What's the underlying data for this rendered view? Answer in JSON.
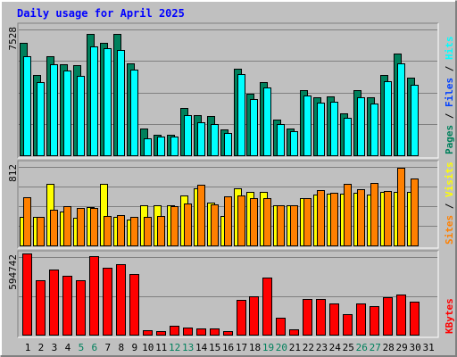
{
  "title": "Daily usage for April 2025",
  "colors": {
    "background": "#c0c0c0",
    "border_light": "#ffffff",
    "border_dark": "#808080",
    "title": "#0000ff",
    "pages": "#00805c",
    "files": "#0040ff",
    "hits": "#00ffff",
    "visits": "#ffff00",
    "sites": "#ff8000",
    "kbytes": "#ff0000",
    "weekend_label": "#00805c",
    "label": "#000000",
    "separator": "#000000"
  },
  "chart_data": [
    {
      "type": "bar",
      "panel": "top",
      "max_label": "7528",
      "ylim": [
        0,
        7528
      ],
      "legend": [
        {
          "text": "Pages",
          "color": "#00805c"
        },
        {
          "text": "Files",
          "color": "#0040ff"
        },
        {
          "text": "Hits",
          "color": "#00ffff"
        }
      ],
      "separator": " / ",
      "categories": [
        "1",
        "2",
        "3",
        "4",
        "5",
        "6",
        "7",
        "8",
        "9",
        "10",
        "11",
        "12",
        "13",
        "14",
        "15",
        "16",
        "17",
        "18",
        "19",
        "20",
        "21",
        "22",
        "23",
        "24",
        "25",
        "26",
        "27",
        "28",
        "29",
        "30",
        "31"
      ],
      "series": [
        {
          "name": "Pages",
          "color": "#00805c",
          "values": [
            6900,
            4950,
            6100,
            5600,
            5550,
            7500,
            6950,
            7500,
            5650,
            1650,
            1250,
            1250,
            2900,
            2500,
            2400,
            1600,
            5350,
            3800,
            4500,
            2200,
            1650,
            4000,
            3550,
            3600,
            2600,
            4000,
            3550,
            4950,
            6250,
            4800,
            null
          ]
        },
        {
          "name": "Files",
          "color": "#0040ff",
          "values": [
            6100,
            4500,
            5600,
            5200,
            4900,
            6700,
            6600,
            6500,
            5250,
            1050,
            1150,
            1150,
            2450,
            2050,
            1950,
            1400,
            5000,
            3450,
            4200,
            1950,
            1500,
            3700,
            3250,
            3300,
            2300,
            3550,
            3200,
            4550,
            5650,
            4350,
            null
          ]
        },
        {
          "name": "Hits",
          "color": "#00ffff",
          "values": [
            6100,
            4500,
            5600,
            5200,
            4900,
            6700,
            6600,
            6500,
            5250,
            1050,
            1150,
            1150,
            2450,
            2050,
            1950,
            1400,
            5000,
            3450,
            4200,
            1950,
            1500,
            3700,
            3250,
            3300,
            2300,
            3550,
            3200,
            4550,
            5650,
            4350,
            null
          ]
        }
      ]
    },
    {
      "type": "bar",
      "panel": "middle",
      "max_label": "812",
      "ylim": [
        0,
        812
      ],
      "legend": [
        {
          "text": "Sites",
          "color": "#ff8000"
        },
        {
          "text": "Visits",
          "color": "#ffff00"
        }
      ],
      "separator": " / ",
      "categories": [
        "1",
        "2",
        "3",
        "4",
        "5",
        "6",
        "7",
        "8",
        "9",
        "10",
        "11",
        "12",
        "13",
        "14",
        "15",
        "16",
        "17",
        "18",
        "19",
        "20",
        "21",
        "22",
        "23",
        "24",
        "25",
        "26",
        "27",
        "28",
        "29",
        "30",
        "31"
      ],
      "series": [
        {
          "name": "Visits",
          "color": "#ffff00",
          "values": [
            300,
            300,
            640,
            350,
            290,
            400,
            640,
            300,
            270,
            420,
            420,
            420,
            520,
            600,
            450,
            310,
            600,
            560,
            560,
            420,
            420,
            490,
            530,
            540,
            540,
            550,
            530,
            560,
            560,
            560,
            null
          ]
        },
        {
          "name": "Sites",
          "color": "#ff8000",
          "values": [
            500,
            300,
            370,
            410,
            390,
            390,
            310,
            320,
            300,
            300,
            310,
            410,
            440,
            630,
            430,
            510,
            520,
            490,
            490,
            420,
            420,
            490,
            580,
            550,
            640,
            590,
            650,
            570,
            810,
            700,
            null
          ]
        }
      ]
    },
    {
      "type": "bar",
      "panel": "bottom",
      "max_label": "594742",
      "ylim": [
        0,
        594742
      ],
      "legend": [
        {
          "text": "KBytes",
          "color": "#ff0000"
        }
      ],
      "categories": [
        "1",
        "2",
        "3",
        "4",
        "5",
        "6",
        "7",
        "8",
        "9",
        "10",
        "11",
        "12",
        "13",
        "14",
        "15",
        "16",
        "17",
        "18",
        "19",
        "20",
        "21",
        "22",
        "23",
        "24",
        "25",
        "26",
        "27",
        "28",
        "29",
        "30",
        "31"
      ],
      "series": [
        {
          "name": "KBytes",
          "color": "#ff0000",
          "values": [
            594742,
            397000,
            475000,
            433000,
            397000,
            573000,
            492000,
            516000,
            442000,
            30000,
            25000,
            65000,
            50000,
            45000,
            45000,
            25000,
            253000,
            283000,
            420000,
            122000,
            40000,
            259000,
            259000,
            232000,
            153000,
            232000,
            212000,
            273000,
            293000,
            245000,
            null
          ]
        }
      ]
    }
  ],
  "day_labels": [
    {
      "text": "1",
      "weekend": false
    },
    {
      "text": "2",
      "weekend": false
    },
    {
      "text": "3",
      "weekend": false
    },
    {
      "text": "4",
      "weekend": false
    },
    {
      "text": "5",
      "weekend": true
    },
    {
      "text": "6",
      "weekend": true
    },
    {
      "text": "7",
      "weekend": false
    },
    {
      "text": "8",
      "weekend": false
    },
    {
      "text": "9",
      "weekend": false
    },
    {
      "text": "10",
      "weekend": false
    },
    {
      "text": "11",
      "weekend": false
    },
    {
      "text": "12",
      "weekend": true
    },
    {
      "text": "13",
      "weekend": true
    },
    {
      "text": "14",
      "weekend": false
    },
    {
      "text": "15",
      "weekend": false
    },
    {
      "text": "16",
      "weekend": false
    },
    {
      "text": "17",
      "weekend": false
    },
    {
      "text": "18",
      "weekend": false
    },
    {
      "text": "19",
      "weekend": true
    },
    {
      "text": "20",
      "weekend": true
    },
    {
      "text": "21",
      "weekend": false
    },
    {
      "text": "22",
      "weekend": false
    },
    {
      "text": "23",
      "weekend": false
    },
    {
      "text": "24",
      "weekend": false
    },
    {
      "text": "25",
      "weekend": false
    },
    {
      "text": "26",
      "weekend": true
    },
    {
      "text": "27",
      "weekend": true
    },
    {
      "text": "28",
      "weekend": false
    },
    {
      "text": "29",
      "weekend": false
    },
    {
      "text": "30",
      "weekend": false
    },
    {
      "text": "31",
      "weekend": false
    }
  ]
}
